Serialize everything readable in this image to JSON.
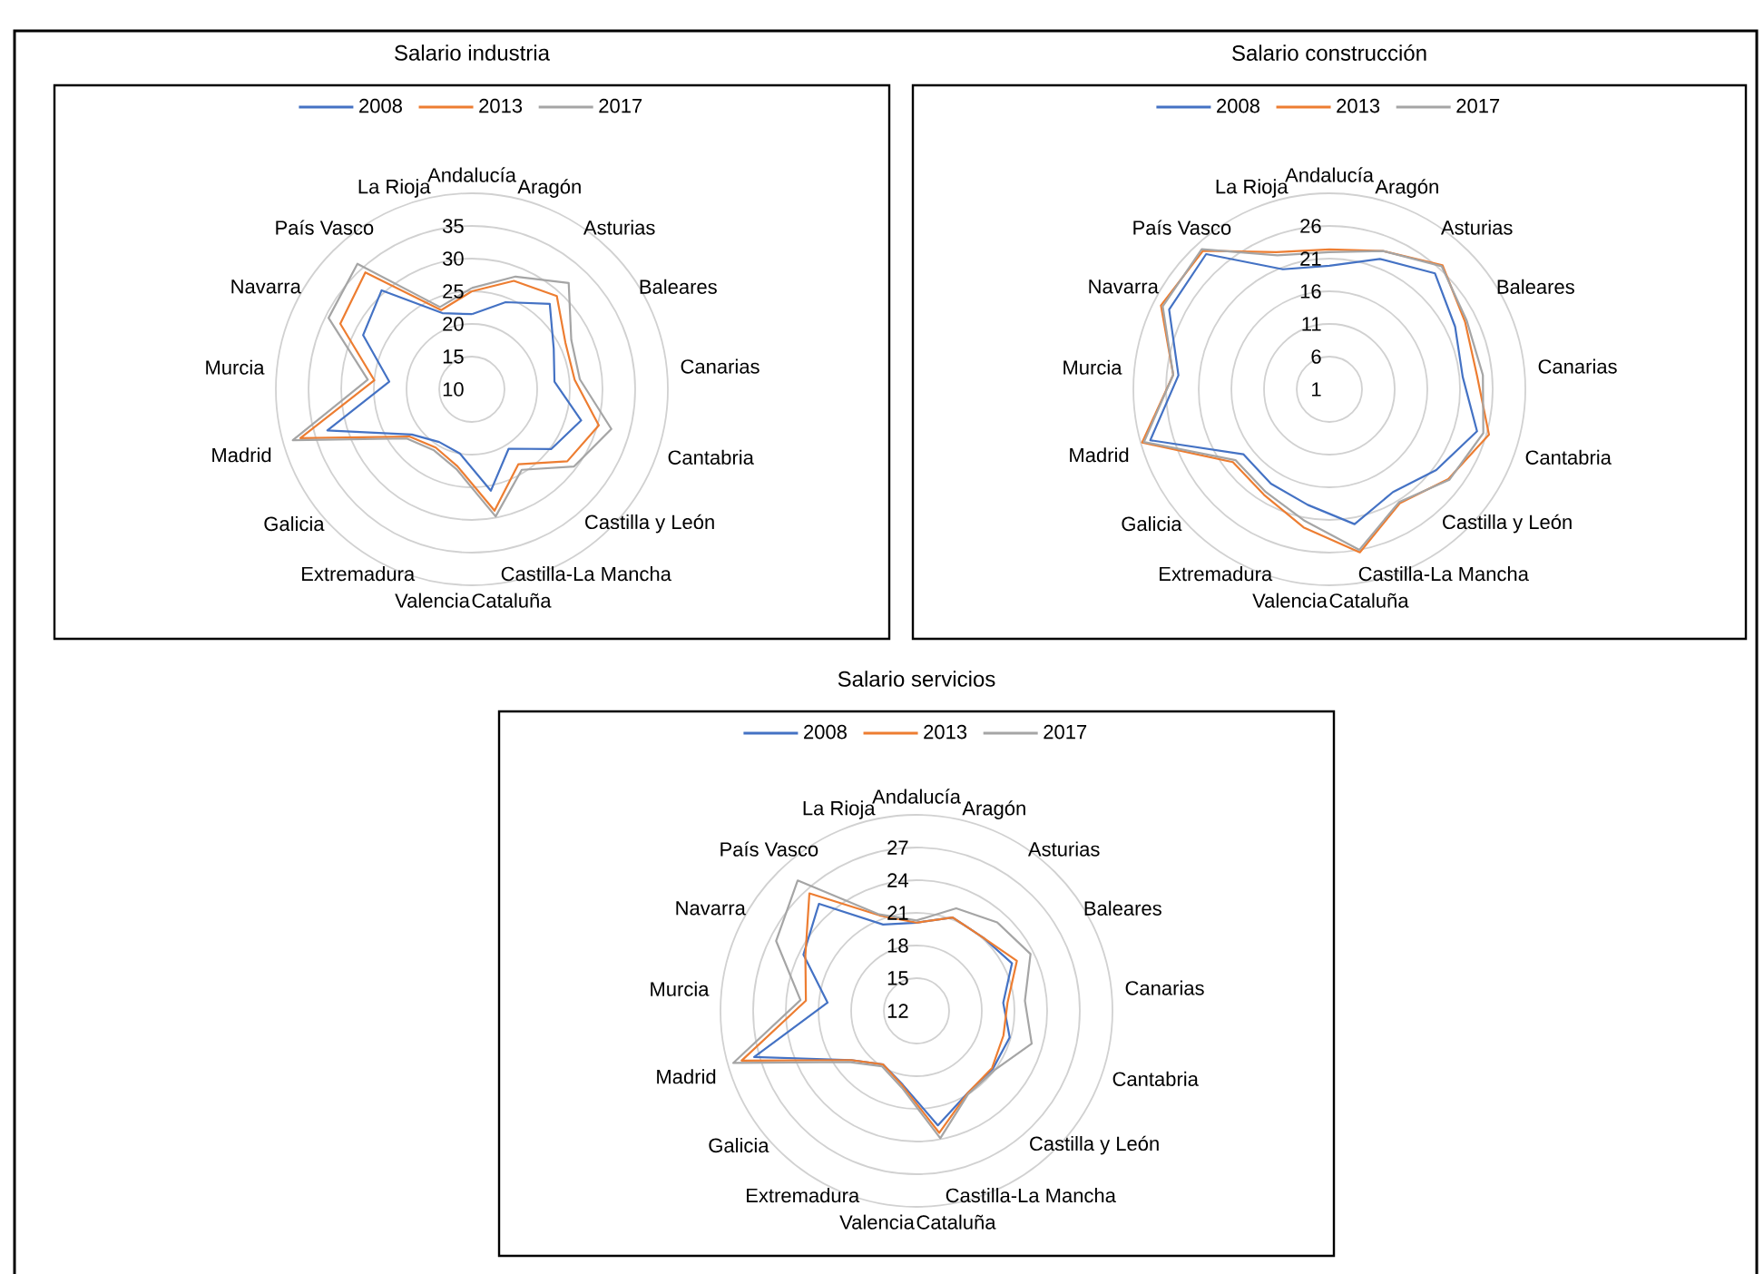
{
  "chart_data": [
    {
      "type": "radar",
      "title": "Salario industria",
      "categories": [
        "Andalucía",
        "Aragón",
        "Asturias",
        "Baleares",
        "Canarias",
        "Cantabria",
        "Castilla y León",
        "Castilla-La Mancha",
        "Cataluña",
        "Valencia",
        "Extremadura",
        "Galicia",
        "Madrid",
        "Murcia",
        "Navarra",
        "País Vasco",
        "La Rioja"
      ],
      "series": [
        {
          "name": "2008",
          "color": "#4472c4",
          "values": [
            21.5,
            24.3,
            27.7,
            24,
            22.7,
            27.4,
            25.2,
            20.7,
            25.8,
            20,
            19.5,
            21.5,
            33,
            22.7,
            28.6,
            30.5,
            22.5
          ]
        },
        {
          "name": "2013",
          "color": "#ed7d31",
          "values": [
            25,
            27.8,
            29.3,
            26,
            25.8,
            30.2,
            28.3,
            23.5,
            28.9,
            22,
            20.5,
            22,
            37.3,
            25,
            32.5,
            34.2,
            23
          ]
        },
        {
          "name": "2017",
          "color": "#a5a5a5",
          "values": [
            25.5,
            28.5,
            32,
            27,
            26.6,
            32.2,
            29.6,
            24.5,
            29.8,
            22.5,
            21,
            22.5,
            38.5,
            26,
            34.5,
            36,
            23.5
          ]
        }
      ],
      "ylim": [
        10,
        40
      ],
      "yticks": [
        10,
        15,
        20,
        25,
        30,
        35
      ],
      "grid": true,
      "legend": "top"
    },
    {
      "type": "radar",
      "title": "Salario construcción",
      "categories": [
        "Andalucía",
        "Aragón",
        "Asturias",
        "Baleares",
        "Canarias",
        "Cantabria",
        "Castilla y León",
        "Castilla-La Mancha",
        "Cataluña",
        "Valencia",
        "Extremadura",
        "Galicia",
        "Madrid",
        "Murcia",
        "Navarra",
        "País Vasco",
        "La Rioja"
      ],
      "series": [
        {
          "name": "2008",
          "color": "#4472c4",
          "values": [
            19.9,
            22.4,
            25,
            22.5,
            21.5,
            24.5,
            21.5,
            19.5,
            22,
            19,
            18,
            17.5,
            29.5,
            24.2,
            28.4,
            29,
            20.7
          ]
        },
        {
          "name": "2013",
          "color": "#ed7d31",
          "values": [
            22.4,
            23.7,
            26.7,
            24.2,
            23.7,
            26.4,
            23.8,
            21.5,
            26.4,
            22.5,
            20,
            19.5,
            30.8,
            25,
            29.8,
            29.7,
            23.5
          ]
        },
        {
          "name": "2017",
          "color": "#a5a5a5",
          "values": [
            22,
            23.7,
            26.5,
            24.5,
            24.6,
            25.5,
            24,
            21.3,
            26,
            21.5,
            19.5,
            19,
            30.5,
            25,
            29.5,
            30,
            23
          ]
        }
      ],
      "ylim": [
        1,
        31
      ],
      "yticks": [
        1,
        6,
        11,
        16,
        21,
        26
      ],
      "grid": true,
      "legend": "top"
    },
    {
      "type": "radar",
      "title": "Salario servicios",
      "categories": [
        "Andalucía",
        "Aragón",
        "Asturias",
        "Baleares",
        "Canarias",
        "Cantabria",
        "Castilla y León",
        "Castilla-La Mancha",
        "Cataluña",
        "Valencia",
        "Extremadura",
        "Galicia",
        "Madrid",
        "Murcia",
        "Navarra",
        "País Vasco",
        "La Rioja"
      ],
      "series": [
        {
          "name": "2008",
          "color": "#4472c4",
          "values": [
            20.1,
            21.2,
            21.1,
            21.8,
            20,
            20.9,
            20.8,
            20.9,
            22.7,
            18.9,
            17.8,
            19.5,
            27.5,
            20.2,
            23.6,
            25.3,
            20.5
          ]
        },
        {
          "name": "2013",
          "color": "#ed7d31",
          "values": [
            20.1,
            21.2,
            21.1,
            22.3,
            20.4,
            20.3,
            20.7,
            20.9,
            23.4,
            19,
            17.8,
            19.5,
            28.7,
            22.2,
            23.4,
            26.6,
            21.4
          ]
        },
        {
          "name": "2017",
          "color": "#a5a5a5",
          "values": [
            20.3,
            22.1,
            23,
            23.7,
            22,
            23,
            21,
            21,
            23.9,
            19.2,
            18,
            19.8,
            29.5,
            22.7,
            26.4,
            28.2,
            21.5
          ]
        }
      ],
      "ylim": [
        12,
        30
      ],
      "yticks": [
        12,
        15,
        18,
        21,
        24,
        27
      ],
      "grid": true,
      "legend": "top"
    }
  ]
}
